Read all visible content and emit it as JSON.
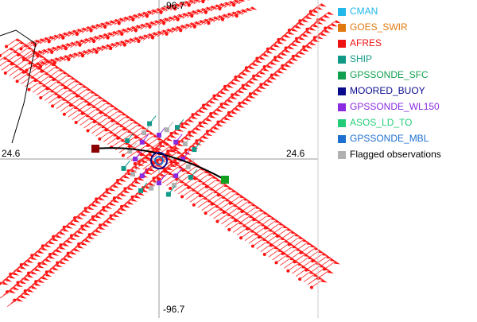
{
  "map": {
    "labels": {
      "top": "-96.7",
      "bottom": "-96.7",
      "left": "24.6",
      "right": "24.6"
    }
  },
  "legend": [
    {
      "label": "CMAN",
      "color": "#1fb8e8"
    },
    {
      "label": "GOES_SWIR",
      "color": "#e07a10"
    },
    {
      "label": "AFRES",
      "color": "#ee1111"
    },
    {
      "label": "SHIP",
      "color": "#119988"
    },
    {
      "label": "GPSSONDE_SFC",
      "color": "#11a050"
    },
    {
      "label": "MOORED_BUOY",
      "color": "#0a0a8c"
    },
    {
      "label": "GPSSONDE_WL150",
      "color": "#8a2be2"
    },
    {
      "label": "ASOS_LD_TO",
      "color": "#22cc77"
    },
    {
      "label": "GPSSONDE_MBL",
      "color": "#1e70d0"
    },
    {
      "label": "Flagged observations",
      "color": "#000000",
      "swatch": "#b0b0b0"
    }
  ]
}
